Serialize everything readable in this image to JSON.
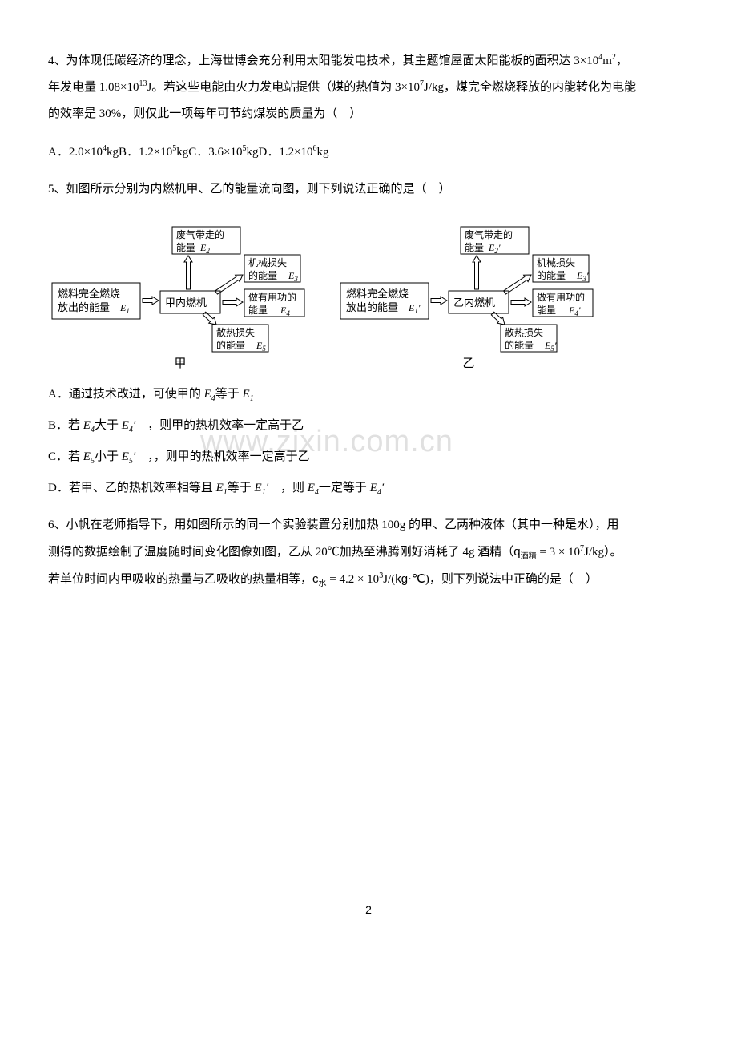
{
  "q4": {
    "num": "4、",
    "text_a": "为体现低碳经济的理念，上海世博会充分利用太阳能发电技术，其主题馆屋面太阳能板的面积达 3×10",
    "exp_a": "4",
    "text_b": "m",
    "exp_b": "2",
    "text_c": "，",
    "text_d": "年发电量 1.08×10",
    "exp_d": "13",
    "text_e": "J。若这些电能由火力发电站提供（煤的热值为 3×10",
    "exp_e": "7",
    "text_f": "J/kg，煤完全燃烧释放的内能转化为电能",
    "text_g": "的效率是 30%，则仅此一项每年可节约煤炭的质量为（　）",
    "opts": {
      "a_pre": "A．2.0×10",
      "a_exp": "4",
      "a_post": "kg",
      "b_pre": "B．1.2×10",
      "b_exp": "5",
      "b_post": "kg",
      "c_pre": "C．3.6×10",
      "c_exp": "5",
      "c_post": "kg",
      "d_pre": "D．1.2×10",
      "d_exp": "6",
      "d_post": "kg"
    }
  },
  "q5": {
    "num": "5、",
    "text": "如图所示分别为内燃机甲、乙的能量流向图，则下列说法正确的是（　）",
    "diagram": {
      "left": {
        "fuel_l1": "燃料完全燃烧",
        "fuel_l2": "放出的能量",
        "fuel_var": "E",
        "fuel_sub": "1",
        "engine": "甲内燃机",
        "exhaust_l1": "废气带走的",
        "exhaust_l2": "能量",
        "exhaust_var": "E",
        "exhaust_sub": "2",
        "mech_l1": "机械损失",
        "mech_l2": "的能量",
        "mech_var": "E",
        "mech_sub": "3",
        "work_l1": "做有用功的",
        "work_l2": "能量",
        "work_var": "E",
        "work_sub": "4",
        "heat_l1": "散热损失",
        "heat_l2": "的能量",
        "heat_var": "E",
        "heat_sub": "5",
        "caption": "甲"
      },
      "right": {
        "fuel_l1": "燃料完全燃烧",
        "fuel_l2": "放出的能量",
        "fuel_var": "E",
        "fuel_sub": "1",
        "engine": "乙内燃机",
        "exhaust_l1": "废气带走的",
        "exhaust_l2": "能量",
        "exhaust_var": "E",
        "exhaust_sub": "2",
        "mech_l1": "机械损失",
        "mech_l2": "的能量",
        "mech_var": "E",
        "mech_sub": "3",
        "work_l1": "做有用功的",
        "work_l2": "能量",
        "work_var": "E",
        "work_sub": "4",
        "heat_l1": "散热损失",
        "heat_l2": "的能量",
        "heat_var": "E",
        "heat_sub": "5",
        "caption": "乙",
        "prime": "′"
      }
    },
    "opts": {
      "a_pre": "A．通过技术改进，可使甲的 ",
      "a_e4": "E",
      "a_e4sub": "4",
      "a_mid": "等于 ",
      "a_e1": "E",
      "a_e1sub": "1",
      "b_pre": "B．若 ",
      "b_e4": "E",
      "b_e4sub": "4",
      "b_mid1": "大于 ",
      "b_e4p": "E",
      "b_e4psub": "4",
      "b_prime": "′",
      "b_post": "　，则甲的热机效率一定高于乙",
      "c_pre": "C．若 ",
      "c_e5": "E",
      "c_e5sub": "5",
      "c_mid1": "小于 ",
      "c_e5p": "E",
      "c_e5psub": "5",
      "c_prime": "′",
      "c_post": "　，，则甲的热机效率一定高于乙",
      "d_pre": "D．若甲、乙的热机效率相等且 ",
      "d_e1": "E",
      "d_e1sub": "1",
      "d_mid1": "等于 ",
      "d_e1p": "E",
      "d_e1psub": "1",
      "d_prime": "′",
      "d_mid2": "　，则 ",
      "d_e4": "E",
      "d_e4sub": "4",
      "d_mid3": "一定等于 ",
      "d_e4p": "E",
      "d_e4psub": "4"
    }
  },
  "q6": {
    "num": "6、",
    "t1": "小帆在老师指导下，用如图所示的同一个实验装置分别加热 100g 的甲、乙两种液体（其中一种是水），用",
    "t2": "测得的数据绘制了温度随时间变化图像如图，乙从 20℃加热至沸腾刚好消耗了 4g 酒精（",
    "q_sub": "q",
    "q_sub2": "酒精",
    "t3": " = 3 × 10",
    "exp7": "7",
    "t4": "J/kg）。",
    "t5": "若单位时间内甲吸收的热量与乙吸收的热量相等，",
    "c_sub": "c",
    "c_sub2": "水",
    "t6": " = 4.2 × 10",
    "exp3": "3",
    "t7": "J/(",
    "kg": "kg",
    "t8": "·℃)",
    "t9": "，则下列说法中正确的是（　）"
  },
  "watermark": "www.zixin.com.cn",
  "page": "2"
}
